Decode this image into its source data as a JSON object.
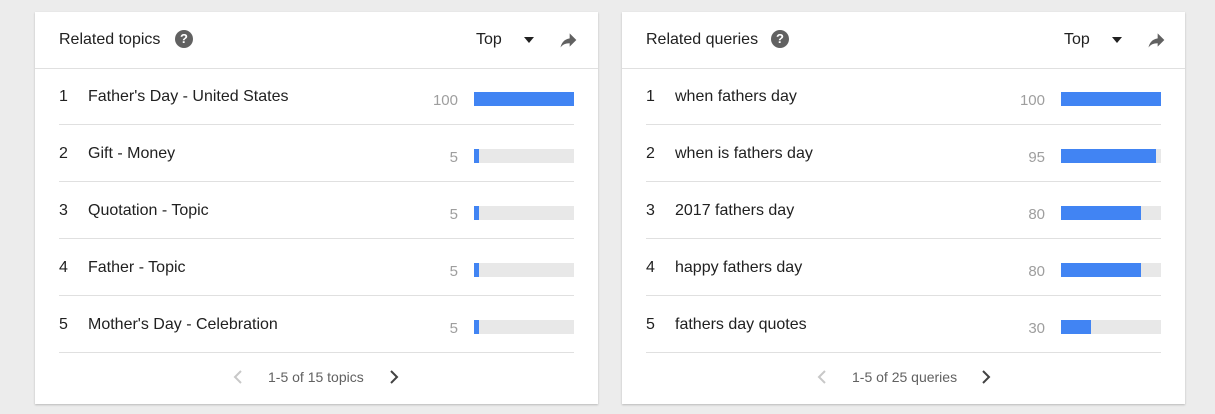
{
  "topics_card": {
    "title": "Related topics",
    "help_symbol": "?",
    "select_value": "Top",
    "rows": [
      {
        "rank": "1",
        "label": "Father's Day - United States",
        "value": 100
      },
      {
        "rank": "2",
        "label": "Gift - Money",
        "value": 5
      },
      {
        "rank": "3",
        "label": "Quotation - Topic",
        "value": 5
      },
      {
        "rank": "4",
        "label": "Father - Topic",
        "value": 5
      },
      {
        "rank": "5",
        "label": "Mother's Day - Celebration",
        "value": 5
      }
    ],
    "pagination": "1-5 of 15 topics"
  },
  "queries_card": {
    "title": "Related queries",
    "help_symbol": "?",
    "select_value": "Top",
    "rows": [
      {
        "rank": "1",
        "label": "when fathers day",
        "value": 100
      },
      {
        "rank": "2",
        "label": "when is fathers day",
        "value": 95
      },
      {
        "rank": "3",
        "label": "2017 fathers day",
        "value": 80
      },
      {
        "rank": "4",
        "label": "happy fathers day",
        "value": 80
      },
      {
        "rank": "5",
        "label": "fathers day quotes",
        "value": 30
      }
    ],
    "pagination": "1-5 of 25 queries"
  },
  "colors": {
    "bar_fill": "#4184f3",
    "bar_track": "#e8e8e8",
    "value_text": "#9e9e9e",
    "background": "#ececec"
  },
  "icons": {
    "help": "help-circle-icon",
    "dropdown": "triangle-down-icon",
    "share": "share-arrow-icon",
    "prev": "chevron-left-icon",
    "next": "chevron-right-icon"
  }
}
